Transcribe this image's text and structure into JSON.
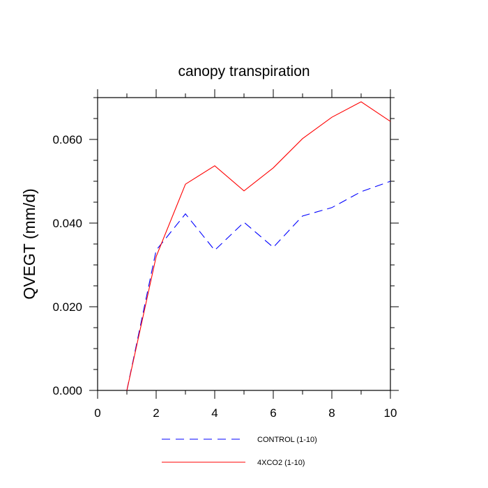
{
  "chart_data": {
    "type": "line",
    "title": "canopy transpiration",
    "xlabel": "",
    "ylabel": "QVEGT  (mm/d)",
    "xlim": [
      0,
      10
    ],
    "ylim": [
      0,
      0.07
    ],
    "x_ticks": [
      0,
      2,
      4,
      6,
      8,
      10
    ],
    "x_tick_labels": [
      "0",
      "2",
      "4",
      "6",
      "8",
      "10"
    ],
    "y_ticks": [
      0,
      0.02,
      0.04,
      0.06
    ],
    "y_tick_labels": [
      "0.000",
      "0.020",
      "0.040",
      "0.060"
    ],
    "grid": false,
    "legend_position": "bottom",
    "x": [
      1,
      2,
      3,
      4,
      5,
      6,
      7,
      8,
      9,
      10
    ],
    "series": [
      {
        "name": "CONTROL (1-10)",
        "color": "#0000ff",
        "dash": "dashed",
        "values": [
          0.0,
          0.0335,
          0.0422,
          0.0335,
          0.0402,
          0.0342,
          0.0417,
          0.0437,
          0.0475,
          0.05
        ]
      },
      {
        "name": "4XCO2 (1-10)",
        "color": "#ff0000",
        "dash": "solid",
        "values": [
          0.0,
          0.032,
          0.0493,
          0.0537,
          0.0477,
          0.0532,
          0.0602,
          0.0653,
          0.069,
          0.0643
        ]
      }
    ]
  }
}
